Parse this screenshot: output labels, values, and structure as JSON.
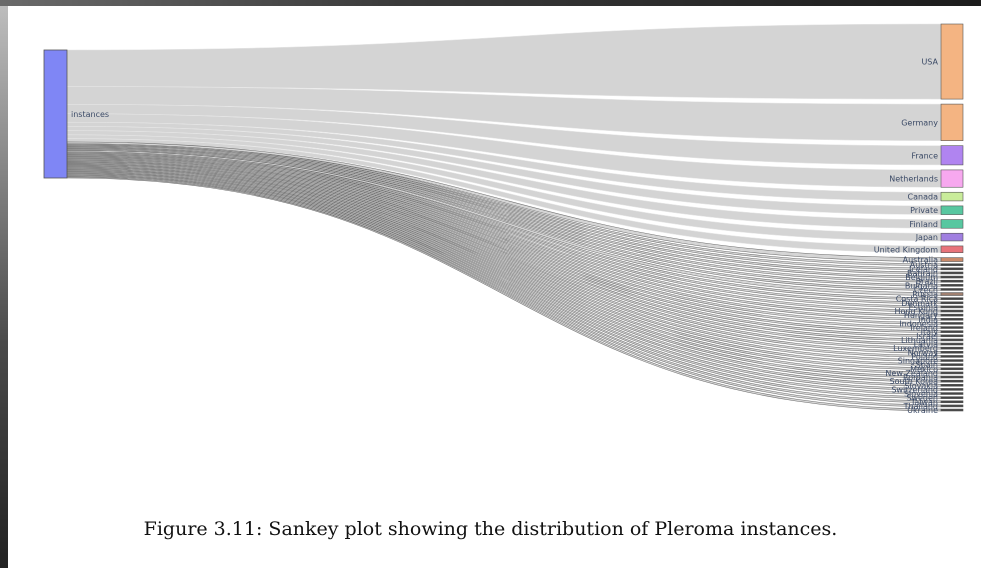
{
  "caption": "Figure 3.11: Sankey plot showing the distribution of Pleroma instances.",
  "chart_data": {
    "type": "sankey",
    "source": {
      "name": "instances",
      "color": "#7f86f5"
    },
    "targets": [
      {
        "name": "USA",
        "value": 78,
        "color": "#f4b482"
      },
      {
        "name": "Germany",
        "value": 38,
        "color": "#f4b482"
      },
      {
        "name": "France",
        "value": 20,
        "color": "#b084f0"
      },
      {
        "name": "Netherlands",
        "value": 18,
        "color": "#f7a8ef"
      },
      {
        "name": "Canada",
        "value": 9,
        "color": "#c9ec9a"
      },
      {
        "name": "Private",
        "value": 9,
        "color": "#58c7a0"
      },
      {
        "name": "Finland",
        "value": 9,
        "color": "#58c7a0"
      },
      {
        "name": "Japan",
        "value": 8,
        "color": "#a07fe0"
      },
      {
        "name": "United Kingdom",
        "value": 7,
        "color": "#e8737a"
      },
      {
        "name": "Australia",
        "value": 4,
        "color": "#c98a6a"
      },
      {
        "name": "Austria",
        "value": 2,
        "color": "#444444"
      },
      {
        "name": "Iceland",
        "value": 2,
        "color": "#444444"
      },
      {
        "name": "Bahrain",
        "value": 2,
        "color": "#444444"
      },
      {
        "name": "Belgium",
        "value": 2,
        "color": "#444444"
      },
      {
        "name": "Brazil",
        "value": 2,
        "color": "#444444"
      },
      {
        "name": "Bulgaria",
        "value": 2,
        "color": "#444444"
      },
      {
        "name": "Czech",
        "value": 2,
        "color": "#444444"
      },
      {
        "name": "Russia",
        "value": 3,
        "color": "#a08070"
      },
      {
        "name": "Costa Rica",
        "value": 2,
        "color": "#444444"
      },
      {
        "name": "Denmark",
        "value": 2,
        "color": "#444444"
      },
      {
        "name": "Estonia",
        "value": 2,
        "color": "#444444"
      },
      {
        "name": "Hong Kong",
        "value": 2,
        "color": "#444444"
      },
      {
        "name": "Hungary",
        "value": 2,
        "color": "#444444"
      },
      {
        "name": "India",
        "value": 2,
        "color": "#444444"
      },
      {
        "name": "Indonesia",
        "value": 2,
        "color": "#444444"
      },
      {
        "name": "Ireland",
        "value": 2,
        "color": "#444444"
      },
      {
        "name": "Italy",
        "value": 2,
        "color": "#444444"
      },
      {
        "name": "Israel",
        "value": 2,
        "color": "#444444"
      },
      {
        "name": "Lithuania",
        "value": 2,
        "color": "#444444"
      },
      {
        "name": "Latvia",
        "value": 2,
        "color": "#444444"
      },
      {
        "name": "Luxemberg",
        "value": 2,
        "color": "#444444"
      },
      {
        "name": "Norway",
        "value": 2,
        "color": "#444444"
      },
      {
        "name": "Poland",
        "value": 2,
        "color": "#444444"
      },
      {
        "name": "Singapore",
        "value": 2,
        "color": "#444444"
      },
      {
        "name": "Spain",
        "value": 2,
        "color": "#444444"
      },
      {
        "name": "Mexico",
        "value": 2,
        "color": "#444444"
      },
      {
        "name": "New Zealand",
        "value": 2,
        "color": "#444444"
      },
      {
        "name": "Romania",
        "value": 2,
        "color": "#444444"
      },
      {
        "name": "South Korea",
        "value": 2,
        "color": "#444444"
      },
      {
        "name": "Slovakia",
        "value": 2,
        "color": "#444444"
      },
      {
        "name": "Switzerland",
        "value": 2,
        "color": "#444444"
      },
      {
        "name": "Slovenia",
        "value": 2,
        "color": "#444444"
      },
      {
        "name": "Sweden",
        "value": 2,
        "color": "#444444"
      },
      {
        "name": "Taiwan",
        "value": 2,
        "color": "#444444"
      },
      {
        "name": "Thailand",
        "value": 2,
        "color": "#444444"
      },
      {
        "name": "Ukraine",
        "value": 2,
        "color": "#444444"
      }
    ]
  }
}
